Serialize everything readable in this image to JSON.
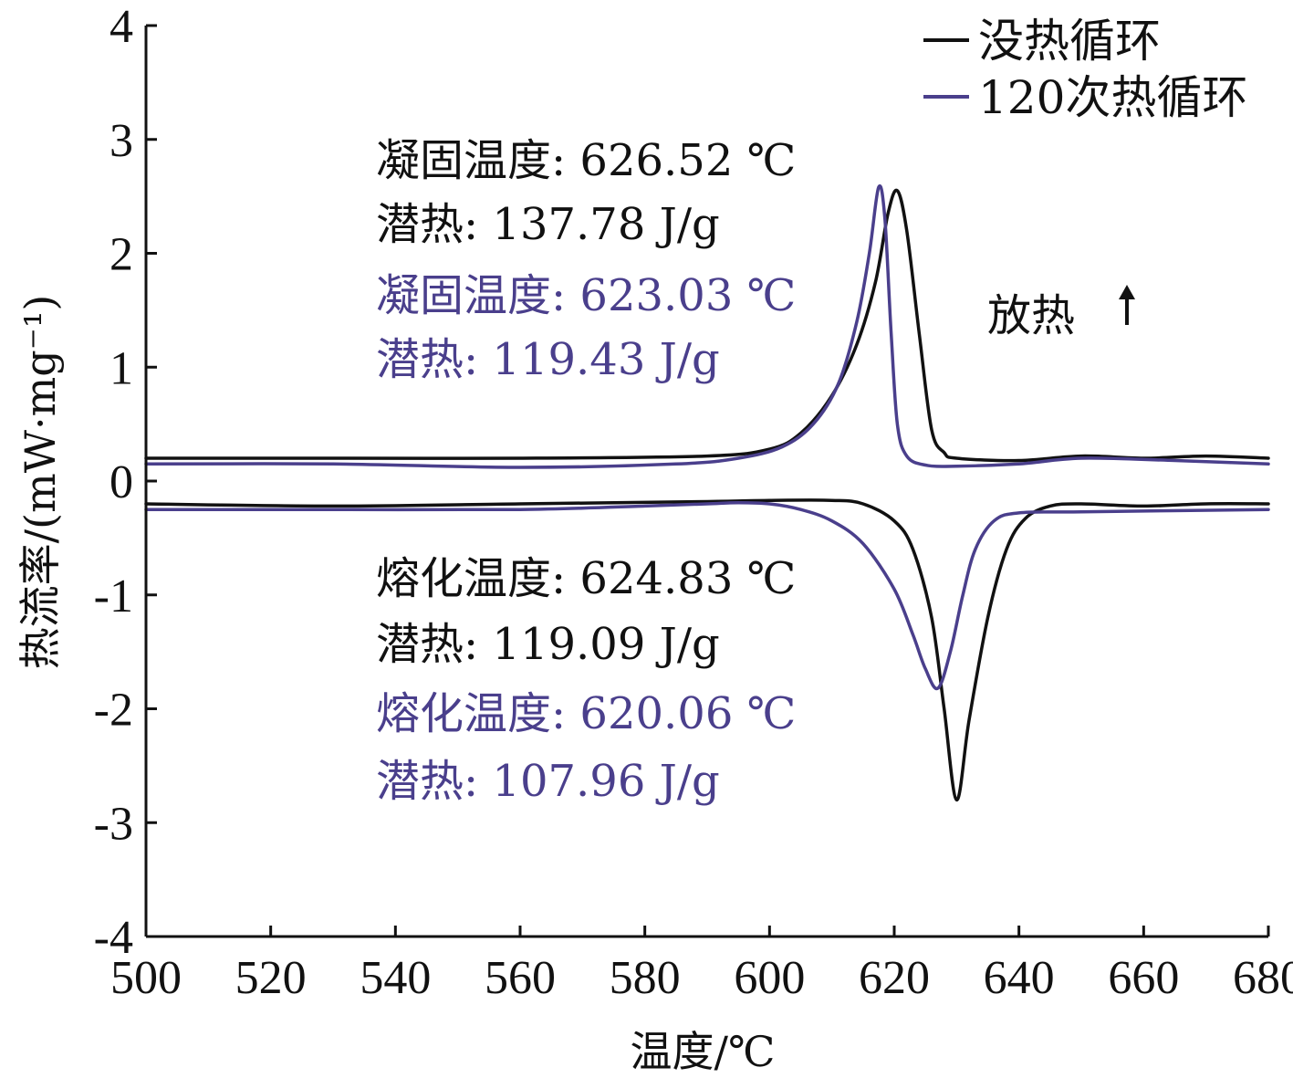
{
  "chart_data": {
    "type": "line",
    "title": "",
    "xlabel": "温度/℃",
    "ylabel": "热流率/(mW·mg⁻¹)",
    "xlim": [
      500,
      680
    ],
    "ylim": [
      -4,
      4
    ],
    "xticks": [
      "500",
      "520",
      "540",
      "560",
      "580",
      "600",
      "620",
      "640",
      "660",
      "680"
    ],
    "yticks": [
      "4",
      "3",
      "2",
      "1",
      "0",
      "-1",
      "-2",
      "-3",
      "-4"
    ],
    "grid": false,
    "legend_position": "top-right",
    "colors": {
      "no_cycle": "#111111",
      "cycle_120": "#4a3f8c",
      "arrow": "#e0a020"
    },
    "series": [
      {
        "name": "没热循环",
        "segment": "cooling (exothermic)",
        "x": [
          500,
          530,
          560,
          590,
          600,
          605,
          610,
          614,
          617,
          619,
          620.5,
          622,
          624,
          626,
          628,
          630,
          640,
          650,
          660,
          670,
          680
        ],
        "y": [
          0.2,
          0.2,
          0.2,
          0.22,
          0.28,
          0.42,
          0.75,
          1.2,
          1.75,
          2.35,
          2.55,
          2.2,
          1.3,
          0.45,
          0.25,
          0.2,
          0.18,
          0.22,
          0.2,
          0.22,
          0.2
        ]
      },
      {
        "name": "没热循环",
        "segment": "heating (endothermic)",
        "x": [
          500,
          530,
          560,
          590,
          600,
          610,
          615,
          620,
          623,
          626,
          628,
          630,
          632,
          635,
          638,
          641,
          645,
          650,
          660,
          670,
          680
        ],
        "y": [
          -0.2,
          -0.22,
          -0.2,
          -0.18,
          -0.17,
          -0.17,
          -0.2,
          -0.35,
          -0.6,
          -1.2,
          -2.0,
          -2.8,
          -2.1,
          -1.2,
          -0.6,
          -0.33,
          -0.22,
          -0.2,
          -0.22,
          -0.2,
          -0.2
        ]
      },
      {
        "name": "120次热循环",
        "segment": "cooling (exothermic)",
        "x": [
          500,
          530,
          560,
          585,
          595,
          602,
          607,
          611,
          614,
          616,
          617.5,
          618.5,
          619.5,
          620.5,
          622,
          625,
          630,
          640,
          650,
          665,
          680
        ],
        "y": [
          0.15,
          0.15,
          0.12,
          0.15,
          0.2,
          0.3,
          0.5,
          0.85,
          1.4,
          2.0,
          2.58,
          2.3,
          1.3,
          0.5,
          0.22,
          0.14,
          0.13,
          0.15,
          0.2,
          0.18,
          0.15
        ]
      },
      {
        "name": "120次热循环",
        "segment": "heating (endothermic)",
        "x": [
          500,
          530,
          560,
          580,
          590,
          595,
          600,
          605,
          610,
          615,
          620,
          623,
          625,
          627,
          629,
          631,
          633,
          636,
          640,
          650,
          680
        ],
        "y": [
          -0.25,
          -0.25,
          -0.25,
          -0.22,
          -0.2,
          -0.19,
          -0.2,
          -0.25,
          -0.35,
          -0.55,
          -0.95,
          -1.35,
          -1.65,
          -1.82,
          -1.5,
          -1.0,
          -0.6,
          -0.35,
          -0.28,
          -0.27,
          -0.25
        ]
      }
    ],
    "annotations": [
      {
        "text": "凝固温度: 626.52 ℃",
        "color": "#111111"
      },
      {
        "text": "潜热: 137.78 J/g",
        "color": "#111111"
      },
      {
        "text": "凝固温度: 623.03 ℃",
        "color": "#4a3f8c"
      },
      {
        "text": "潜热: 119.43 J/g",
        "color": "#4a3f8c"
      },
      {
        "text": "放热",
        "color": "#111111"
      },
      {
        "text": "熔化温度: 624.83 ℃",
        "color": "#111111"
      },
      {
        "text": "潜热: 119.09 J/g",
        "color": "#111111"
      },
      {
        "text": "熔化温度: 620.06 ℃",
        "color": "#4a3f8c"
      },
      {
        "text": "潜热: 107.96 J/g",
        "color": "#4a3f8c"
      }
    ]
  }
}
